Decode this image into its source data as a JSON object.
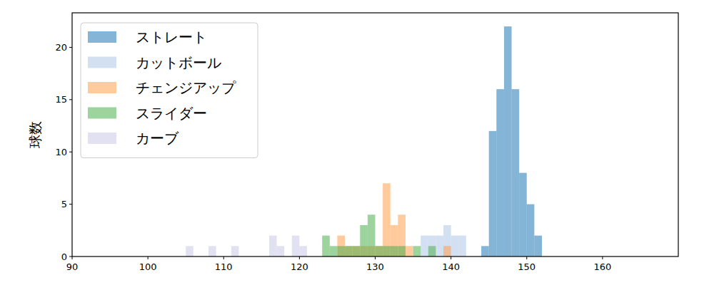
{
  "chart_data": {
    "type": "histogram",
    "y_label": "球数",
    "xlim": [
      90,
      170
    ],
    "ylim": [
      0,
      23.3
    ],
    "xticks": [
      90,
      100,
      110,
      120,
      130,
      140,
      150,
      160
    ],
    "yticks": [
      0,
      5,
      10,
      15,
      20
    ],
    "legend": "upper left",
    "grid": false,
    "series": [
      {
        "name": "ストレート",
        "color": "#1f77b4",
        "bins": [
          144,
          145,
          146,
          147,
          148,
          149,
          150,
          151,
          152
        ],
        "values": [
          1,
          12,
          16,
          22,
          16,
          8,
          5,
          2
        ]
      },
      {
        "name": "カットボール",
        "color": "#aec7e8",
        "bins": [
          136,
          137,
          138,
          139,
          140,
          141,
          142
        ],
        "values": [
          2,
          2,
          2,
          3,
          2,
          2
        ]
      },
      {
        "name": "チェンジアップ",
        "color": "#ff9f4a",
        "bins": [
          125,
          126,
          127,
          128,
          129,
          130,
          131,
          132,
          133,
          134,
          135,
          136,
          137,
          138,
          139,
          140
        ],
        "values": [
          2,
          1,
          1,
          1,
          1,
          1,
          7,
          3,
          4,
          1,
          0,
          0,
          0,
          0,
          1
        ]
      },
      {
        "name": "スライダー",
        "color": "#4cae4c",
        "bins": [
          123,
          124,
          125,
          126,
          127,
          128,
          129,
          130,
          131,
          132,
          133,
          134,
          135,
          136,
          137,
          138
        ],
        "values": [
          2,
          1,
          1,
          1,
          1,
          3,
          4,
          1,
          1,
          1,
          1,
          0,
          1,
          0,
          1
        ]
      },
      {
        "name": "カーブ",
        "color": "#c8c8e8",
        "bins": [
          105,
          106,
          107,
          108,
          109,
          110,
          111,
          112,
          113,
          114,
          115,
          116,
          117,
          118,
          119,
          120,
          121
        ],
        "values": [
          1,
          0,
          0,
          1,
          0,
          0,
          1,
          0,
          0,
          0,
          0,
          2,
          1,
          0,
          2,
          1
        ]
      }
    ]
  }
}
